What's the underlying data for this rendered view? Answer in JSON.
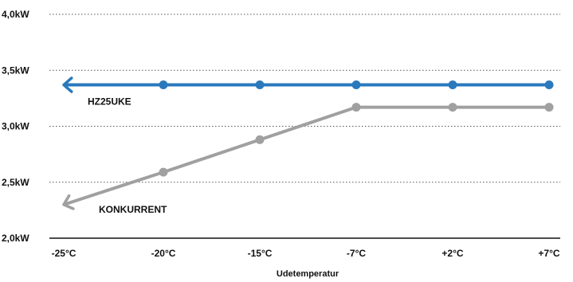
{
  "chart_data": {
    "type": "line",
    "title": "",
    "xlabel": "Udetemperatur",
    "ylabel": "",
    "categories": [
      "-25°C",
      "-20°C",
      "-15°C",
      "-7°C",
      "+2°C",
      "+7°C"
    ],
    "y_ticks": [
      "2,0kW",
      "2,5kW",
      "3,0kW",
      "3,5kW",
      "4,0kW"
    ],
    "ylim": [
      2.0,
      4.0
    ],
    "grid": "horizontal-dotted",
    "series": [
      {
        "name": "HZ25UKE",
        "color": "#2a79bd",
        "values": [
          3.37,
          3.37,
          3.37,
          3.37,
          3.37,
          3.37
        ],
        "arrow_at_first": true,
        "marker_on_first": false
      },
      {
        "name": "KONKURRENT",
        "color": "#a0a0a0",
        "values": [
          2.3,
          2.59,
          2.88,
          3.17,
          3.17,
          3.17
        ],
        "arrow_at_first": true,
        "marker_on_first": false
      }
    ]
  }
}
